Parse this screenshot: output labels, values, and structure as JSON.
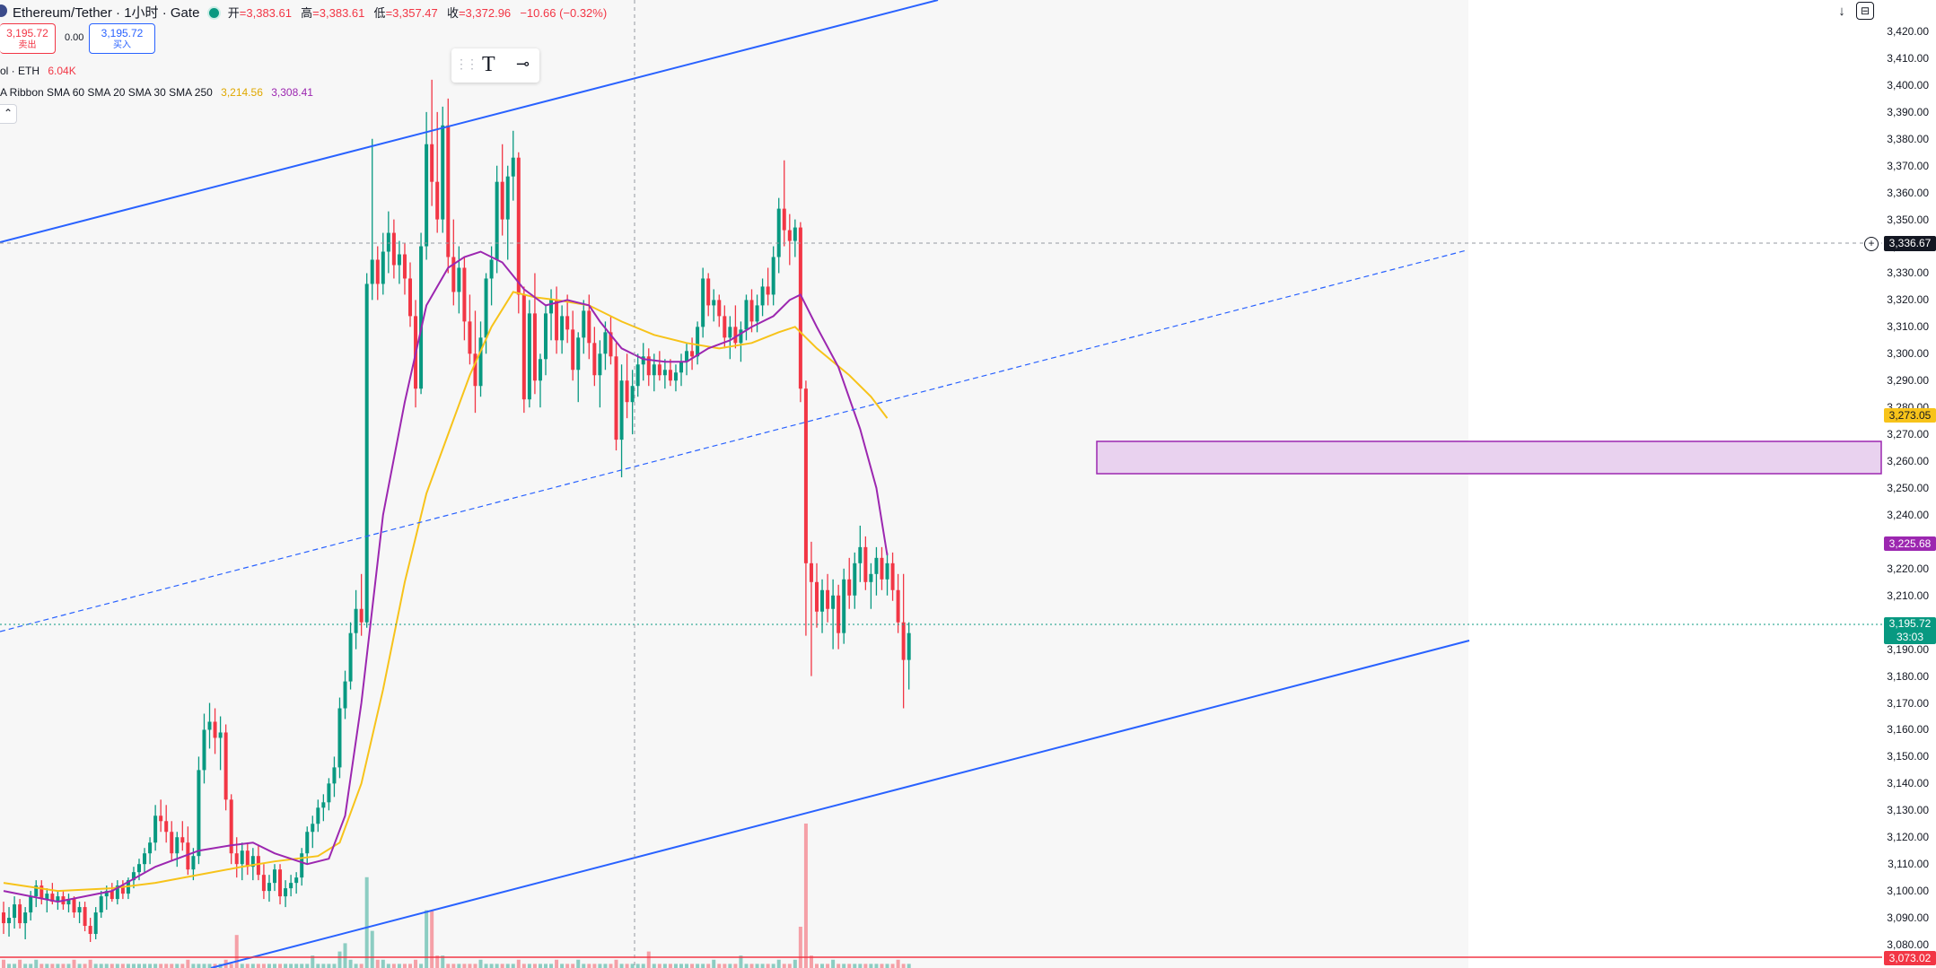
{
  "header": {
    "title": "Ethereum/Tether · 1小时 · Gate",
    "open_label": "开",
    "open_value": "=3,383.61",
    "high_label": "高",
    "high_value": "=3,383.61",
    "low_label": "低",
    "low_value": "=3,357.47",
    "close_label": "收",
    "close_value": "=3,372.96",
    "change_value": "−10.66 (−0.32%)"
  },
  "trade": {
    "sell_price": "3,195.72",
    "sell_label": "卖出",
    "spread": "0.00",
    "buy_price": "3,195.72",
    "buy_label": "买入"
  },
  "indicators": {
    "volume_text": "ol · ETH",
    "volume_value": "6.04K",
    "ribbon_text": "A Ribbon SMA 60 SMA 20 SMA 30 SMA 250",
    "ribbon_value_1": "3,214.56",
    "ribbon_value_2": "3,308.41",
    "collapse_icon": "chevron-up-icon"
  },
  "toolbar": {
    "text_tool": "T",
    "line_tool": "⊸"
  },
  "top_right": {
    "download_icon": "↓",
    "fullscreen_icon": "⊟"
  },
  "price_axis": {
    "labels": [
      "3,420.00",
      "3,410.00",
      "3,400.00",
      "3,390.00",
      "3,380.00",
      "3,370.00",
      "3,360.00",
      "3,350.00",
      "3,340.00",
      "3,330.00",
      "3,320.00",
      "3,310.00",
      "3,300.00",
      "3,290.00",
      "3,280.00",
      "3,270.00",
      "3,260.00",
      "3,250.00",
      "3,240.00",
      "3,230.00",
      "3,220.00",
      "3,210.00",
      "3,200.00",
      "3,190.00",
      "3,180.00",
      "3,170.00",
      "3,160.00",
      "3,150.00",
      "3,140.00",
      "3,130.00",
      "3,120.00",
      "3,110.00",
      "3,100.00",
      "3,090.00",
      "3,080.00"
    ],
    "crosshair_price": "3,336.67",
    "yellow_tag": "3,273.05",
    "purple_tag": "3,225.68",
    "last_price": "3,195.72",
    "countdown": "33:03",
    "red_tag": "3,073.02"
  },
  "colors": {
    "up": "#089981",
    "down": "#f23645",
    "sma_purple": "#9c27b0",
    "sma_yellow": "#f7c31a",
    "trendline": "#2962ff",
    "zone_fill": "#e9d2ef",
    "zone_stroke": "#9c27b0"
  },
  "chart_data": {
    "type": "candlestick",
    "symbol": "Ethereum/Tether",
    "interval": "1小时",
    "exchange": "Gate",
    "ylim": [
      3073,
      3425
    ],
    "candles": [
      [
        3092,
        3096,
        3084,
        3088
      ],
      [
        3088,
        3094,
        3083,
        3090
      ],
      [
        3090,
        3098,
        3086,
        3095
      ],
      [
        3095,
        3097,
        3086,
        3088
      ],
      [
        3088,
        3094,
        3082,
        3092
      ],
      [
        3092,
        3100,
        3089,
        3098
      ],
      [
        3098,
        3104,
        3094,
        3102
      ],
      [
        3102,
        3104,
        3095,
        3097
      ],
      [
        3097,
        3101,
        3092,
        3099
      ],
      [
        3099,
        3103,
        3095,
        3096
      ],
      [
        3096,
        3100,
        3093,
        3098
      ],
      [
        3098,
        3100,
        3093,
        3095
      ],
      [
        3095,
        3099,
        3092,
        3097
      ],
      [
        3097,
        3098,
        3090,
        3092
      ],
      [
        3092,
        3096,
        3088,
        3094
      ],
      [
        3094,
        3096,
        3085,
        3087
      ],
      [
        3087,
        3090,
        3081,
        3084
      ],
      [
        3084,
        3094,
        3082,
        3092
      ],
      [
        3092,
        3100,
        3090,
        3098
      ],
      [
        3098,
        3102,
        3093,
        3100
      ],
      [
        3100,
        3103,
        3096,
        3097
      ],
      [
        3097,
        3104,
        3095,
        3102
      ],
      [
        3102,
        3104,
        3097,
        3099
      ],
      [
        3099,
        3105,
        3097,
        3104
      ],
      [
        3104,
        3109,
        3101,
        3107
      ],
      [
        3107,
        3112,
        3104,
        3110
      ],
      [
        3110,
        3116,
        3107,
        3114
      ],
      [
        3114,
        3120,
        3110,
        3118
      ],
      [
        3118,
        3132,
        3115,
        3128
      ],
      [
        3128,
        3134,
        3122,
        3126
      ],
      [
        3126,
        3132,
        3118,
        3122
      ],
      [
        3122,
        3126,
        3111,
        3114
      ],
      [
        3114,
        3122,
        3109,
        3120
      ],
      [
        3120,
        3126,
        3115,
        3118
      ],
      [
        3118,
        3124,
        3106,
        3108
      ],
      [
        3108,
        3116,
        3104,
        3113
      ],
      [
        3113,
        3150,
        3110,
        3145
      ],
      [
        3145,
        3166,
        3140,
        3160
      ],
      [
        3160,
        3170,
        3153,
        3163
      ],
      [
        3163,
        3168,
        3151,
        3157
      ],
      [
        3157,
        3165,
        3145,
        3159
      ],
      [
        3159,
        3162,
        3130,
        3134
      ],
      [
        3134,
        3136,
        3110,
        3114
      ],
      [
        3114,
        3120,
        3105,
        3110
      ],
      [
        3110,
        3118,
        3104,
        3115
      ],
      [
        3115,
        3118,
        3106,
        3109
      ],
      [
        3109,
        3116,
        3104,
        3113
      ],
      [
        3113,
        3117,
        3104,
        3106
      ],
      [
        3106,
        3110,
        3097,
        3100
      ],
      [
        3100,
        3106,
        3096,
        3103
      ],
      [
        3103,
        3110,
        3100,
        3108
      ],
      [
        3108,
        3110,
        3095,
        3098
      ],
      [
        3098,
        3104,
        3094,
        3101
      ],
      [
        3101,
        3106,
        3098,
        3103
      ],
      [
        3103,
        3107,
        3099,
        3105
      ],
      [
        3105,
        3116,
        3102,
        3114
      ],
      [
        3114,
        3124,
        3110,
        3122
      ],
      [
        3122,
        3128,
        3116,
        3125
      ],
      [
        3125,
        3134,
        3122,
        3131
      ],
      [
        3131,
        3136,
        3126,
        3133
      ],
      [
        3133,
        3142,
        3130,
        3140
      ],
      [
        3140,
        3150,
        3135,
        3146
      ],
      [
        3146,
        3172,
        3142,
        3168
      ],
      [
        3168,
        3182,
        3164,
        3178
      ],
      [
        3178,
        3200,
        3175,
        3196
      ],
      [
        3196,
        3212,
        3190,
        3205
      ],
      [
        3205,
        3218,
        3195,
        3200
      ],
      [
        3200,
        3330,
        3198,
        3326
      ],
      [
        3326,
        3380,
        3320,
        3335
      ],
      [
        3335,
        3340,
        3320,
        3326
      ],
      [
        3326,
        3345,
        3322,
        3338
      ],
      [
        3338,
        3353,
        3330,
        3345
      ],
      [
        3345,
        3350,
        3328,
        3333
      ],
      [
        3333,
        3342,
        3326,
        3337
      ],
      [
        3337,
        3341,
        3322,
        3328
      ],
      [
        3328,
        3334,
        3310,
        3314
      ],
      [
        3314,
        3320,
        3280,
        3287
      ],
      [
        3287,
        3345,
        3285,
        3340
      ],
      [
        3340,
        3390,
        3335,
        3378
      ],
      [
        3378,
        3402,
        3355,
        3364
      ],
      [
        3364,
        3390,
        3345,
        3350
      ],
      [
        3350,
        3392,
        3345,
        3385
      ],
      [
        3385,
        3395,
        3330,
        3336
      ],
      [
        3336,
        3350,
        3318,
        3323
      ],
      [
        3323,
        3340,
        3315,
        3332
      ],
      [
        3332,
        3336,
        3305,
        3312
      ],
      [
        3312,
        3322,
        3296,
        3300
      ],
      [
        3300,
        3316,
        3278,
        3288
      ],
      [
        3288,
        3312,
        3284,
        3306
      ],
      [
        3306,
        3330,
        3300,
        3328
      ],
      [
        3328,
        3340,
        3318,
        3335
      ],
      [
        3335,
        3370,
        3330,
        3364
      ],
      [
        3364,
        3378,
        3344,
        3350
      ],
      [
        3350,
        3370,
        3335,
        3366
      ],
      [
        3366,
        3383,
        3357,
        3373
      ],
      [
        3373,
        3375,
        3315,
        3322
      ],
      [
        3322,
        3325,
        3278,
        3283
      ],
      [
        3283,
        3320,
        3280,
        3315
      ],
      [
        3315,
        3330,
        3285,
        3290
      ],
      [
        3290,
        3300,
        3280,
        3298
      ],
      [
        3298,
        3318,
        3292,
        3315
      ],
      [
        3315,
        3324,
        3305,
        3320
      ],
      [
        3320,
        3325,
        3300,
        3305
      ],
      [
        3305,
        3318,
        3300,
        3314
      ],
      [
        3314,
        3322,
        3304,
        3309
      ],
      [
        3309,
        3316,
        3290,
        3294
      ],
      [
        3294,
        3308,
        3282,
        3306
      ],
      [
        3306,
        3320,
        3300,
        3316
      ],
      [
        3316,
        3322,
        3298,
        3304
      ],
      [
        3304,
        3310,
        3288,
        3292
      ],
      [
        3292,
        3305,
        3280,
        3300
      ],
      [
        3300,
        3312,
        3294,
        3308
      ],
      [
        3308,
        3314,
        3296,
        3299
      ],
      [
        3299,
        3304,
        3264,
        3268
      ],
      [
        3268,
        3296,
        3254,
        3290
      ],
      [
        3290,
        3300,
        3276,
        3282
      ],
      [
        3282,
        3294,
        3270,
        3288
      ],
      [
        3288,
        3300,
        3284,
        3296
      ],
      [
        3296,
        3304,
        3290,
        3299
      ],
      [
        3299,
        3302,
        3288,
        3292
      ],
      [
        3292,
        3300,
        3286,
        3296
      ],
      [
        3296,
        3301,
        3290,
        3292
      ],
      [
        3292,
        3298,
        3287,
        3294
      ],
      [
        3294,
        3298,
        3288,
        3290
      ],
      [
        3290,
        3296,
        3286,
        3293
      ],
      [
        3293,
        3300,
        3288,
        3297
      ],
      [
        3297,
        3304,
        3292,
        3301
      ],
      [
        3301,
        3306,
        3294,
        3299
      ],
      [
        3299,
        3312,
        3296,
        3310
      ],
      [
        3310,
        3332,
        3306,
        3328
      ],
      [
        3328,
        3330,
        3314,
        3318
      ],
      [
        3318,
        3324,
        3312,
        3320
      ],
      [
        3320,
        3322,
        3310,
        3314
      ],
      [
        3314,
        3318,
        3302,
        3306
      ],
      [
        3306,
        3314,
        3298,
        3310
      ],
      [
        3310,
        3318,
        3302,
        3304
      ],
      [
        3304,
        3312,
        3297,
        3309
      ],
      [
        3309,
        3322,
        3305,
        3320
      ],
      [
        3320,
        3324,
        3308,
        3312
      ],
      [
        3312,
        3322,
        3308,
        3318
      ],
      [
        3318,
        3328,
        3314,
        3325
      ],
      [
        3325,
        3332,
        3318,
        3322
      ],
      [
        3322,
        3340,
        3318,
        3336
      ],
      [
        3336,
        3358,
        3330,
        3354
      ],
      [
        3354,
        3372,
        3340,
        3346
      ],
      [
        3346,
        3352,
        3333,
        3342
      ],
      [
        3342,
        3350,
        3336,
        3347
      ],
      [
        3347,
        3349,
        3282,
        3287
      ],
      [
        3287,
        3290,
        3195,
        3222
      ],
      [
        3222,
        3230,
        3180,
        3215
      ],
      [
        3215,
        3222,
        3198,
        3204
      ],
      [
        3204,
        3216,
        3196,
        3212
      ],
      [
        3212,
        3218,
        3200,
        3205
      ],
      [
        3205,
        3216,
        3190,
        3210
      ],
      [
        3210,
        3214,
        3190,
        3196
      ],
      [
        3196,
        3220,
        3192,
        3216
      ],
      [
        3216,
        3224,
        3205,
        3210
      ],
      [
        3210,
        3226,
        3205,
        3222
      ],
      [
        3222,
        3236,
        3215,
        3228
      ],
      [
        3228,
        3232,
        3212,
        3215
      ],
      [
        3215,
        3222,
        3205,
        3218
      ],
      [
        3218,
        3228,
        3210,
        3224
      ],
      [
        3224,
        3228,
        3212,
        3216
      ],
      [
        3216,
        3226,
        3210,
        3222
      ],
      [
        3222,
        3226,
        3208,
        3212
      ],
      [
        3212,
        3218,
        3196,
        3200
      ],
      [
        3200,
        3218,
        3168,
        3186
      ],
      [
        3186,
        3200,
        3175,
        3196
      ]
    ],
    "sma_purple_points": [
      [
        0,
        3100
      ],
      [
        10,
        3096
      ],
      [
        20,
        3100
      ],
      [
        28,
        3109
      ],
      [
        36,
        3115
      ],
      [
        42,
        3117
      ],
      [
        46,
        3118
      ],
      [
        50,
        3114
      ],
      [
        56,
        3110
      ],
      [
        60,
        3112
      ],
      [
        63,
        3128
      ],
      [
        66,
        3170
      ],
      [
        70,
        3240
      ],
      [
        74,
        3282
      ],
      [
        78,
        3318
      ],
      [
        82,
        3332
      ],
      [
        85,
        3336
      ],
      [
        88,
        3338
      ],
      [
        92,
        3334
      ],
      [
        96,
        3324
      ],
      [
        100,
        3318
      ],
      [
        104,
        3320
      ],
      [
        108,
        3318
      ],
      [
        110,
        3312
      ],
      [
        114,
        3302
      ],
      [
        118,
        3298
      ],
      [
        122,
        3297
      ],
      [
        126,
        3297
      ],
      [
        130,
        3302
      ],
      [
        134,
        3305
      ],
      [
        138,
        3310
      ],
      [
        142,
        3314
      ],
      [
        145,
        3320
      ],
      [
        147,
        3322
      ],
      [
        150,
        3310
      ],
      [
        154,
        3295
      ],
      [
        158,
        3272
      ],
      [
        161,
        3250
      ],
      [
        163,
        3225
      ]
    ],
    "sma_yellow_points": [
      [
        0,
        3103
      ],
      [
        10,
        3100
      ],
      [
        20,
        3101
      ],
      [
        28,
        3103
      ],
      [
        36,
        3106
      ],
      [
        44,
        3109
      ],
      [
        50,
        3111
      ],
      [
        58,
        3113
      ],
      [
        62,
        3118
      ],
      [
        66,
        3140
      ],
      [
        70,
        3175
      ],
      [
        74,
        3215
      ],
      [
        78,
        3248
      ],
      [
        82,
        3270
      ],
      [
        86,
        3292
      ],
      [
        90,
        3310
      ],
      [
        94,
        3323
      ],
      [
        98,
        3321
      ],
      [
        102,
        3320
      ],
      [
        108,
        3318
      ],
      [
        114,
        3312
      ],
      [
        120,
        3307
      ],
      [
        126,
        3304
      ],
      [
        132,
        3302
      ],
      [
        138,
        3304
      ],
      [
        143,
        3308
      ],
      [
        146,
        3310
      ],
      [
        150,
        3302
      ],
      [
        156,
        3292
      ],
      [
        160,
        3284
      ],
      [
        163,
        3276
      ]
    ],
    "volume": [
      2,
      1,
      1,
      2,
      1,
      1,
      2,
      1,
      1,
      1,
      1,
      1,
      1,
      2,
      1,
      1,
      2,
      1,
      1,
      1,
      1,
      1,
      1,
      1,
      1,
      1,
      1,
      1,
      1,
      1,
      1,
      1,
      1,
      1,
      2,
      1,
      1,
      1,
      1,
      1,
      1,
      2,
      1,
      8,
      1,
      1,
      1,
      1,
      1,
      1,
      1,
      1,
      1,
      1,
      1,
      1,
      1,
      3,
      1,
      1,
      1,
      1,
      4,
      6,
      2,
      1,
      1,
      22,
      9,
      2,
      2,
      1,
      1,
      1,
      1,
      1,
      2,
      1,
      14,
      14,
      3,
      3,
      1,
      1,
      1,
      1,
      1,
      1,
      2,
      1,
      1,
      1,
      1,
      1,
      1,
      2,
      1,
      1,
      1,
      1,
      1,
      1,
      2,
      1,
      1,
      1,
      2,
      1,
      1,
      1,
      1,
      1,
      1,
      2,
      1,
      1,
      1,
      1,
      1,
      4,
      1,
      1,
      1,
      1,
      1,
      1,
      1,
      1,
      1,
      1,
      1,
      2,
      1,
      1,
      1,
      1,
      3,
      1,
      1,
      1,
      1,
      1,
      1,
      2,
      1,
      1,
      2,
      10,
      35,
      3,
      1,
      1,
      1,
      2,
      1,
      1,
      1,
      1,
      1,
      1,
      1,
      1,
      1,
      1,
      1,
      2,
      1,
      1
    ]
  }
}
